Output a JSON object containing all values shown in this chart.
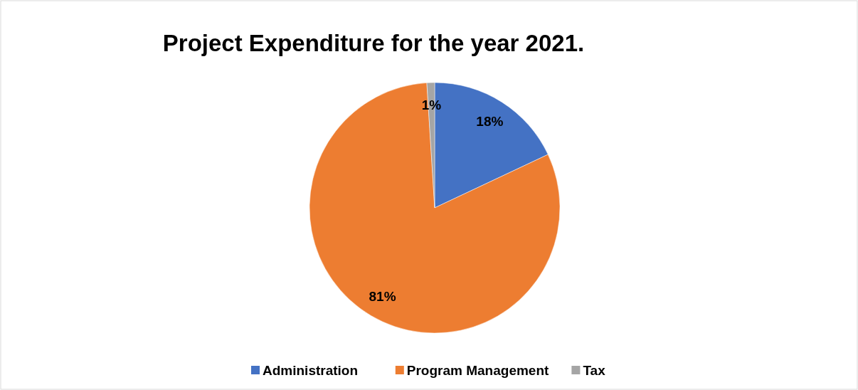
{
  "chart_data": {
    "type": "pie",
    "title": "Project Expenditure for the year 2021.",
    "categories": [
      "Administration",
      "Program Management",
      "Tax"
    ],
    "values": [
      18,
      81,
      1
    ],
    "colors": [
      "#4472c4",
      "#ed7d31",
      "#a5a5a5"
    ],
    "value_labels": [
      "18%",
      "81%",
      "1%"
    ],
    "legend": "bottom"
  }
}
